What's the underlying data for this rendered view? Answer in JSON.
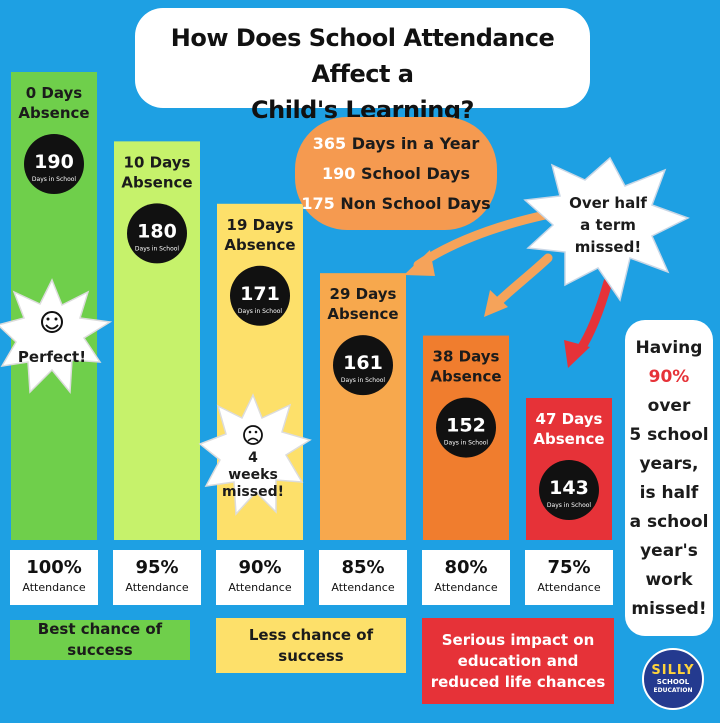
{
  "title": {
    "line1": "How Does School Attendance Affect a",
    "line2": "Child's Learning?"
  },
  "stats": {
    "year_num": "365",
    "year_label": "Days in a Year",
    "school_num": "190",
    "school_label": "School Days",
    "non_num": "175",
    "non_label": "Non School Days"
  },
  "callouts": {
    "over_half": [
      "Over half",
      "a term",
      "missed!"
    ],
    "perfect": "Perfect!",
    "weeks": [
      "4",
      "weeks",
      "missed!"
    ],
    "having": [
      "Having",
      "90%",
      "over",
      "5 school",
      "years,",
      "is half",
      "a school",
      "year's",
      "work",
      "missed!"
    ]
  },
  "bands": {
    "best": "Best chance of success",
    "less": "Less chance of success",
    "serious": [
      "Serious impact on",
      "education and",
      "reduced life chances"
    ]
  },
  "logo": {
    "line1": "SILLY",
    "line2": "SCHOOL",
    "line3": "EDUCATION"
  },
  "colors": {
    "background": "#1ea0e3",
    "green": "#6fcf4b",
    "light_green": "#c6f26b",
    "yellow": "#fde06a",
    "orange_light": "#f7a84d",
    "orange": "#f07d2e",
    "red": "#e63238"
  },
  "chart_data": {
    "type": "bar",
    "categories": [
      "0 Days Absence",
      "10 Days Absence",
      "19 Days Absence",
      "29 Days Absence",
      "38 Days Absence",
      "47 Days Absence"
    ],
    "absence_days": [
      0,
      10,
      19,
      29,
      38,
      47
    ],
    "values": [
      190,
      180,
      171,
      161,
      152,
      143
    ],
    "value_unit": "Days in School",
    "attendance_pct": [
      "100%",
      "95%",
      "90%",
      "85%",
      "80%",
      "75%"
    ],
    "attendance_label": "Attendance",
    "absence_word": "Days",
    "absence_word2": "Absence",
    "colors": [
      "#6fcf4b",
      "#c6f26b",
      "#fde06a",
      "#f7a84d",
      "#f07d2e",
      "#e63238"
    ],
    "ylim": [
      130,
      200
    ]
  }
}
